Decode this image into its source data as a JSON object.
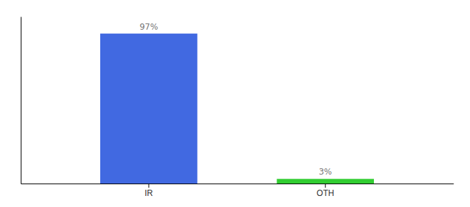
{
  "chart_data": {
    "type": "bar",
    "categories": [
      "IR",
      "OTH"
    ],
    "values": [
      97,
      3
    ],
    "value_labels": [
      "97%",
      "3%"
    ],
    "colors": [
      "#4169E1",
      "#32CD32"
    ],
    "ylim": [
      0,
      108
    ],
    "data_labels": true,
    "grid": false,
    "tick_labels": "x"
  }
}
